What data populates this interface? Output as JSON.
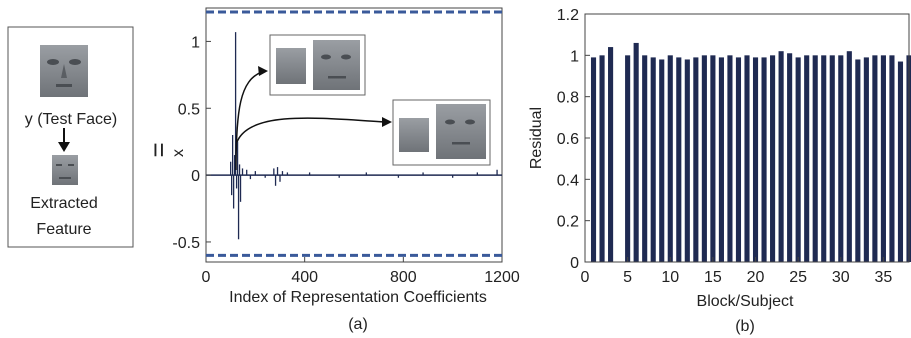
{
  "left_panel": {
    "test_face_label": "y (Test Face)",
    "extracted_line1": "Extracted",
    "extracted_line2": "Feature",
    "equals": "="
  },
  "chart_data": [
    {
      "type": "line",
      "xlabel": "Index of Representation Coefficients",
      "ylabel": "x",
      "xlim": [
        0,
        1200
      ],
      "ylim": [
        -0.65,
        1.25
      ],
      "xticks": [
        "0",
        "400",
        "800",
        "1200"
      ],
      "yticks": [
        "-0.5",
        "0",
        "0.5",
        "1"
      ],
      "dashed_bounds": [
        1.22,
        -0.6
      ],
      "caption": "(a)",
      "series": [
        {
          "spikes": [
            {
              "x": 100,
              "y": 0.1
            },
            {
              "x": 104,
              "y": -0.15
            },
            {
              "x": 108,
              "y": 0.3
            },
            {
              "x": 112,
              "y": -0.25
            },
            {
              "x": 116,
              "y": 0.15
            },
            {
              "x": 120,
              "y": 1.07
            },
            {
              "x": 124,
              "y": -0.1
            },
            {
              "x": 128,
              "y": 0.25
            },
            {
              "x": 132,
              "y": -0.48
            },
            {
              "x": 136,
              "y": 0.08
            },
            {
              "x": 140,
              "y": -0.2
            },
            {
              "x": 148,
              "y": 0.05
            },
            {
              "x": 165,
              "y": 0.04
            },
            {
              "x": 180,
              "y": -0.03
            },
            {
              "x": 200,
              "y": 0.03
            },
            {
              "x": 240,
              "y": -0.02
            },
            {
              "x": 275,
              "y": 0.05
            },
            {
              "x": 282,
              "y": -0.08
            },
            {
              "x": 290,
              "y": 0.06
            },
            {
              "x": 300,
              "y": -0.05
            },
            {
              "x": 310,
              "y": 0.03
            },
            {
              "x": 330,
              "y": 0.02
            },
            {
              "x": 420,
              "y": 0.02
            },
            {
              "x": 540,
              "y": -0.02
            },
            {
              "x": 650,
              "y": 0.02
            },
            {
              "x": 780,
              "y": -0.02
            },
            {
              "x": 880,
              "y": 0.02
            },
            {
              "x": 1000,
              "y": -0.02
            },
            {
              "x": 1100,
              "y": 0.02
            },
            {
              "x": 1180,
              "y": 0.04
            }
          ]
        }
      ]
    },
    {
      "type": "bar",
      "xlabel": "Block/Subject",
      "ylabel": "Residual",
      "ylim": [
        0,
        1.2
      ],
      "xlim": [
        0,
        38
      ],
      "yticks": [
        "0",
        "0.2",
        "0.4",
        "0.6",
        "0.8",
        "1",
        "1.2"
      ],
      "xticks": [
        "0",
        "5",
        "10",
        "15",
        "20",
        "25",
        "30",
        "35"
      ],
      "caption": "(b)",
      "categories": [
        1,
        2,
        3,
        4,
        5,
        6,
        7,
        8,
        9,
        10,
        11,
        12,
        13,
        14,
        15,
        16,
        17,
        18,
        19,
        20,
        21,
        22,
        23,
        24,
        25,
        26,
        27,
        28,
        29,
        30,
        31,
        32,
        33,
        34,
        35,
        36,
        37,
        38
      ],
      "values": [
        0.99,
        1.0,
        1.04,
        0,
        1.0,
        1.06,
        1.0,
        0.99,
        0.98,
        1.0,
        0.99,
        0.98,
        0.99,
        1.0,
        1.0,
        0.99,
        1.0,
        0.99,
        1.0,
        0.99,
        0.99,
        1.0,
        1.02,
        1.01,
        0.99,
        1.0,
        1.0,
        1.0,
        1.0,
        1.0,
        1.02,
        0.98,
        0.99,
        1.0,
        1.0,
        1.0,
        0.97,
        1.0
      ],
      "bar_color": "#1f2a52"
    }
  ]
}
